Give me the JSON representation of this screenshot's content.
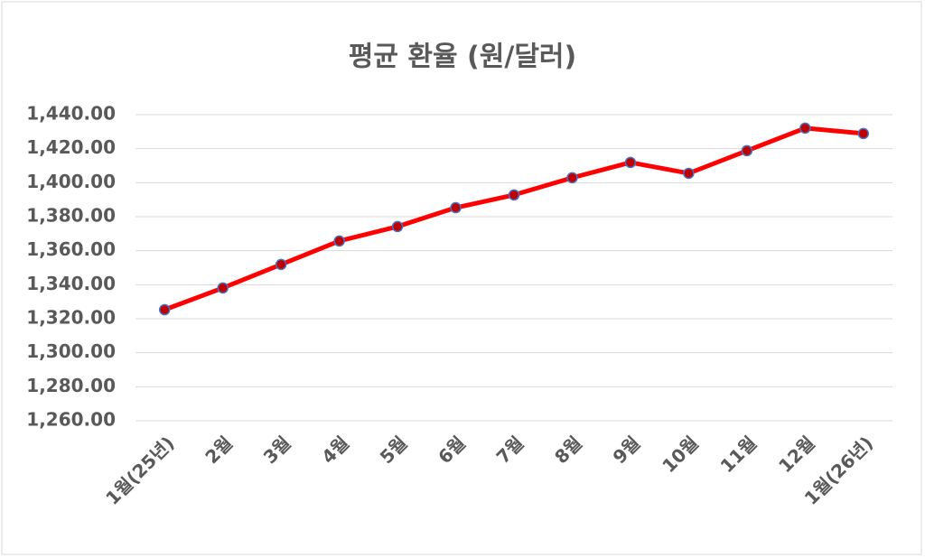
{
  "chart_data": {
    "type": "line",
    "title": "평균 환율 (원/달러)",
    "categories": [
      "1월(25년)",
      "2월",
      "3월",
      "4월",
      "5월",
      "6월",
      "7월",
      "8월",
      "9월",
      "10월",
      "11월",
      "12월",
      "1월(26년)"
    ],
    "series": [
      {
        "name": "평균 환율",
        "color": "#ff0000",
        "marker_color": "#c00000",
        "marker_edge": "#4472c4",
        "values": [
          1325.3,
          1338.1,
          1351.9,
          1365.7,
          1374.2,
          1385.3,
          1392.8,
          1402.9,
          1411.9,
          1405.5,
          1418.8,
          1432.1,
          1428.9
        ]
      }
    ],
    "ylim": [
      1260,
      1440
    ],
    "yticks": [
      {
        "value": 1260,
        "label": "1,260.00"
      },
      {
        "value": 1280,
        "label": "1,280.00"
      },
      {
        "value": 1300,
        "label": "1,300.00"
      },
      {
        "value": 1320,
        "label": "1,320.00"
      },
      {
        "value": 1340,
        "label": "1,340.00"
      },
      {
        "value": 1360,
        "label": "1,360.00"
      },
      {
        "value": 1380,
        "label": "1,380.00"
      },
      {
        "value": 1400,
        "label": "1,400.00"
      },
      {
        "value": 1420,
        "label": "1,420.00"
      },
      {
        "value": 1440,
        "label": "1,440.00"
      }
    ],
    "grid": true
  }
}
